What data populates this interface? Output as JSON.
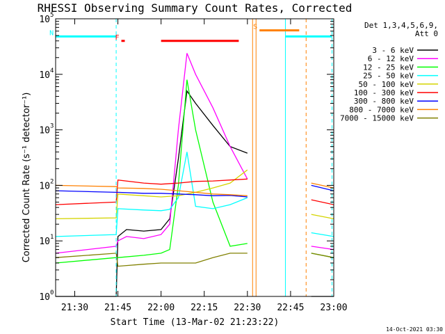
{
  "chart_data": {
    "type": "line",
    "title": "RHESSI Observing Summary Count Rates, Corrected",
    "xlabel": "Start Time (13-Mar-02 21:23:22)",
    "ylabel": "Corrected Count Rate (s⁻¹ detector⁻¹)",
    "footer": "14-Oct-2021 03:30",
    "xlim": [
      21.3894,
      23.0
    ],
    "ylim_log10": [
      0,
      5
    ],
    "x_ticks": [
      {
        "t": 21.5,
        "label": "21:30"
      },
      {
        "t": 21.75,
        "label": "21:45"
      },
      {
        "t": 22.0,
        "label": "22:00"
      },
      {
        "t": 22.25,
        "label": "22:15"
      },
      {
        "t": 22.5,
        "label": "22:30"
      },
      {
        "t": 22.75,
        "label": "22:45"
      },
      {
        "t": 23.0,
        "label": "23:00"
      }
    ],
    "y_ticks": [
      {
        "exp": 0,
        "label": "10",
        "sup": "0"
      },
      {
        "exp": 1,
        "label": "10",
        "sup": "1"
      },
      {
        "exp": 2,
        "label": "10",
        "sup": "2"
      },
      {
        "exp": 3,
        "label": "10",
        "sup": "3"
      },
      {
        "exp": 4,
        "label": "10",
        "sup": "4"
      },
      {
        "exp": 5,
        "label": "10",
        "sup": "5"
      }
    ],
    "legend_header": [
      "Det 1,3,4,5,6,9,",
      "Att 0"
    ],
    "series": [
      {
        "name": "3 - 6 keV",
        "color": "#000000",
        "points": [
          [
            21.39,
            1
          ],
          [
            21.74,
            1
          ],
          [
            21.75,
            12
          ],
          [
            21.8,
            16
          ],
          [
            21.9,
            15
          ],
          [
            22.0,
            16
          ],
          [
            22.05,
            25
          ],
          [
            22.1,
            300
          ],
          [
            22.15,
            5000
          ],
          [
            22.2,
            3000
          ],
          [
            22.3,
            1200
          ],
          [
            22.4,
            500
          ],
          [
            22.5,
            380
          ]
        ]
      },
      {
        "name": "6 - 12 keV",
        "color": "#ff00ff",
        "points": [
          [
            21.39,
            6
          ],
          [
            21.74,
            8
          ],
          [
            21.75,
            10
          ],
          [
            21.8,
            12
          ],
          [
            21.9,
            11
          ],
          [
            22.0,
            13
          ],
          [
            22.05,
            20
          ],
          [
            22.1,
            1000
          ],
          [
            22.15,
            24000
          ],
          [
            22.2,
            10000
          ],
          [
            22.3,
            2500
          ],
          [
            22.4,
            500
          ],
          [
            22.5,
            130
          ]
        ]
      },
      {
        "name": "12 - 25 keV",
        "color": "#00ff00",
        "points": [
          [
            21.39,
            4
          ],
          [
            21.74,
            5
          ],
          [
            21.75,
            5
          ],
          [
            21.9,
            5.5
          ],
          [
            22.0,
            6
          ],
          [
            22.05,
            7
          ],
          [
            22.1,
            100
          ],
          [
            22.15,
            8000
          ],
          [
            22.2,
            1000
          ],
          [
            22.3,
            50
          ],
          [
            22.4,
            8
          ],
          [
            22.5,
            9
          ]
        ]
      },
      {
        "name": "25 - 50 keV",
        "color": "#00ffff",
        "points": [
          [
            21.39,
            12
          ],
          [
            21.74,
            13
          ],
          [
            21.75,
            38
          ],
          [
            21.9,
            36
          ],
          [
            22.0,
            35
          ],
          [
            22.05,
            37
          ],
          [
            22.1,
            60
          ],
          [
            22.15,
            400
          ],
          [
            22.2,
            42
          ],
          [
            22.3,
            38
          ],
          [
            22.4,
            45
          ],
          [
            22.5,
            60
          ]
        ]
      },
      {
        "name": "50 - 100 keV",
        "color": "#d4d400",
        "points": [
          [
            21.39,
            25
          ],
          [
            21.74,
            26
          ],
          [
            21.75,
            70
          ],
          [
            21.9,
            65
          ],
          [
            22.0,
            62
          ],
          [
            22.1,
            65
          ],
          [
            22.2,
            75
          ],
          [
            22.3,
            90
          ],
          [
            22.4,
            110
          ],
          [
            22.5,
            190
          ]
        ]
      },
      {
        "name": "100 - 300 keV",
        "color": "#ff0000",
        "points": [
          [
            21.39,
            45
          ],
          [
            21.74,
            50
          ],
          [
            21.75,
            125
          ],
          [
            21.9,
            110
          ],
          [
            22.0,
            105
          ],
          [
            22.1,
            110
          ],
          [
            22.2,
            118
          ],
          [
            22.3,
            120
          ],
          [
            22.4,
            125
          ],
          [
            22.5,
            130
          ]
        ]
      },
      {
        "name": "300 - 800 keV",
        "color": "#0000ff",
        "points": [
          [
            21.39,
            80
          ],
          [
            21.74,
            75
          ],
          [
            21.75,
            75
          ],
          [
            21.9,
            72
          ],
          [
            22.0,
            72
          ],
          [
            22.1,
            70
          ],
          [
            22.2,
            68
          ],
          [
            22.3,
            65
          ],
          [
            22.4,
            66
          ],
          [
            22.5,
            62
          ]
        ]
      },
      {
        "name": "800 - 7000 keV",
        "color": "#ff8000",
        "points": [
          [
            21.39,
            100
          ],
          [
            21.74,
            95
          ],
          [
            21.75,
            90
          ],
          [
            21.9,
            88
          ],
          [
            22.0,
            85
          ],
          [
            22.1,
            80
          ],
          [
            22.2,
            75
          ],
          [
            22.3,
            70
          ],
          [
            22.4,
            68
          ],
          [
            22.5,
            65
          ]
        ]
      },
      {
        "name": "7000 - 15000 keV",
        "color": "#808000",
        "points": [
          [
            21.39,
            5
          ],
          [
            21.74,
            6
          ],
          [
            21.75,
            3.5
          ],
          [
            21.9,
            3.8
          ],
          [
            22.0,
            4
          ],
          [
            22.1,
            4
          ],
          [
            22.2,
            4
          ],
          [
            22.3,
            5
          ],
          [
            22.4,
            6
          ],
          [
            22.5,
            6
          ]
        ]
      }
    ],
    "after_gap_series": [
      {
        "color": "#ff8000",
        "points": [
          [
            22.87,
            110
          ],
          [
            23.0,
            90
          ]
        ]
      },
      {
        "color": "#0000ff",
        "points": [
          [
            22.87,
            100
          ],
          [
            23.0,
            80
          ]
        ]
      },
      {
        "color": "#ff0000",
        "points": [
          [
            22.87,
            55
          ],
          [
            23.0,
            45
          ]
        ]
      },
      {
        "color": "#d4d400",
        "points": [
          [
            22.87,
            30
          ],
          [
            23.0,
            25
          ]
        ]
      },
      {
        "color": "#00ffff",
        "points": [
          [
            22.87,
            14
          ],
          [
            23.0,
            12
          ]
        ]
      },
      {
        "color": "#ff00ff",
        "points": [
          [
            22.87,
            8
          ],
          [
            23.0,
            7
          ]
        ]
      },
      {
        "color": "#00ff00",
        "points": [
          [
            22.87,
            6
          ],
          [
            23.0,
            5
          ]
        ]
      },
      {
        "color": "#808000",
        "points": [
          [
            22.87,
            6
          ],
          [
            23.0,
            5
          ]
        ]
      },
      {
        "color": "#000000",
        "points": [
          [
            22.87,
            1
          ],
          [
            23.0,
            1
          ]
        ]
      }
    ],
    "vertical_markers": [
      {
        "t": 21.74,
        "color": "#00ffff",
        "style": "dashed"
      },
      {
        "t": 22.53,
        "color": "#ff8000",
        "style": "solid"
      },
      {
        "t": 22.55,
        "color": "#ff8000",
        "style": "solid"
      },
      {
        "t": 22.72,
        "color": "#00ffff",
        "style": "solid"
      },
      {
        "t": 22.84,
        "color": "#ff8000",
        "style": "dashed"
      },
      {
        "t": 22.99,
        "color": "#00ffff",
        "style": "dashed"
      }
    ],
    "flag_bars": [
      {
        "label": "N",
        "color": "#00ffff",
        "t0": 21.39,
        "t1": 21.74,
        "y": 48000
      },
      {
        "label": "",
        "color": "#00ffff",
        "t0": 22.72,
        "t1": 22.99,
        "y": 48000
      },
      {
        "label": "S",
        "color": "#ff8000",
        "t0": 22.57,
        "t1": 22.8,
        "y": 62000
      },
      {
        "label": "F",
        "color": "#ff0000",
        "t0": 21.77,
        "t1": 21.79,
        "y": 40000
      },
      {
        "label": "",
        "color": "#ff0000",
        "t0": 22.0,
        "t1": 22.45,
        "y": 40000
      }
    ]
  }
}
